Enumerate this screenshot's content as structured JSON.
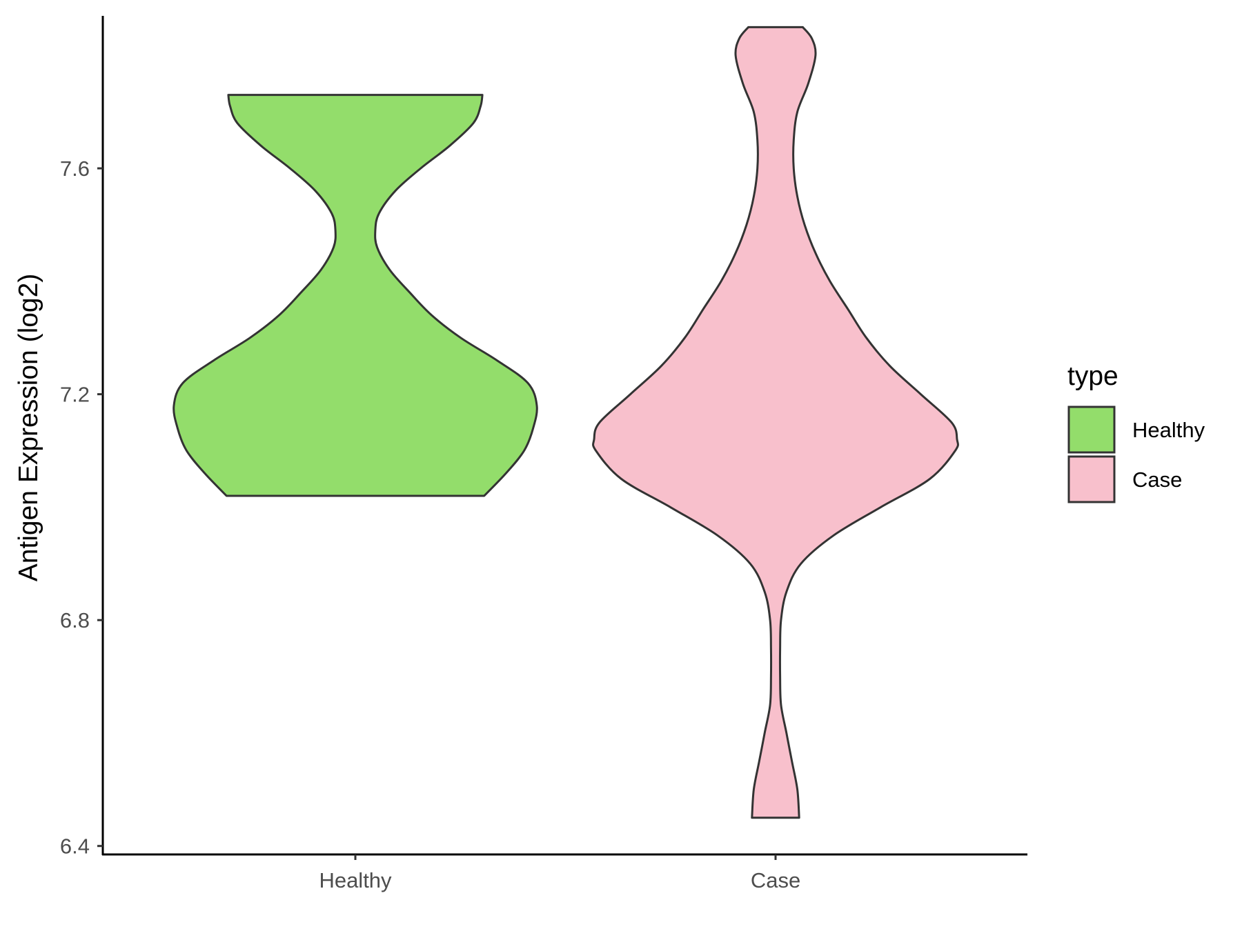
{
  "chart_data": {
    "type": "violin",
    "title": "",
    "xlabel": "",
    "ylabel": "Antigen Expression (log2)",
    "categories": [
      "Healthy",
      "Case"
    ],
    "ylim": [
      6.385,
      7.87
    ],
    "yticks": [
      6.4,
      6.8,
      7.2,
      7.6
    ],
    "ytick_labels": [
      "6.4",
      "6.8",
      "7.2",
      "7.6"
    ],
    "grid": false,
    "legend": {
      "title": "type",
      "position": "right",
      "entries": [
        "Healthy",
        "Case"
      ]
    },
    "colors": {
      "Healthy": "#93dd6b",
      "Case": "#f8c0cc",
      "outline": "#333333"
    },
    "series": [
      {
        "name": "Healthy",
        "min": 7.02,
        "max": 7.73,
        "density": [
          [
            7.02,
            0.71
          ],
          [
            7.06,
            0.83
          ],
          [
            7.1,
            0.93
          ],
          [
            7.14,
            0.98
          ],
          [
            7.18,
            1.0
          ],
          [
            7.22,
            0.95
          ],
          [
            7.26,
            0.78
          ],
          [
            7.3,
            0.58
          ],
          [
            7.34,
            0.42
          ],
          [
            7.38,
            0.3
          ],
          [
            7.42,
            0.19
          ],
          [
            7.46,
            0.12
          ],
          [
            7.49,
            0.11
          ],
          [
            7.52,
            0.13
          ],
          [
            7.56,
            0.22
          ],
          [
            7.6,
            0.36
          ],
          [
            7.64,
            0.52
          ],
          [
            7.68,
            0.65
          ],
          [
            7.71,
            0.69
          ],
          [
            7.73,
            0.7
          ]
        ]
      },
      {
        "name": "Case",
        "min": 6.45,
        "max": 7.85,
        "density": [
          [
            6.45,
            0.13
          ],
          [
            6.5,
            0.12
          ],
          [
            6.55,
            0.09
          ],
          [
            6.6,
            0.06
          ],
          [
            6.65,
            0.03
          ],
          [
            6.7,
            0.025
          ],
          [
            6.75,
            0.025
          ],
          [
            6.8,
            0.03
          ],
          [
            6.85,
            0.06
          ],
          [
            6.9,
            0.14
          ],
          [
            6.95,
            0.32
          ],
          [
            7.0,
            0.58
          ],
          [
            7.05,
            0.85
          ],
          [
            7.1,
            0.99
          ],
          [
            7.12,
            1.0
          ],
          [
            7.15,
            0.97
          ],
          [
            7.2,
            0.8
          ],
          [
            7.25,
            0.63
          ],
          [
            7.3,
            0.5
          ],
          [
            7.35,
            0.4
          ],
          [
            7.4,
            0.3
          ],
          [
            7.45,
            0.22
          ],
          [
            7.5,
            0.16
          ],
          [
            7.55,
            0.12
          ],
          [
            7.6,
            0.1
          ],
          [
            7.65,
            0.1
          ],
          [
            7.7,
            0.12
          ],
          [
            7.75,
            0.18
          ],
          [
            7.8,
            0.22
          ],
          [
            7.83,
            0.2
          ],
          [
            7.85,
            0.15
          ]
        ]
      }
    ]
  }
}
